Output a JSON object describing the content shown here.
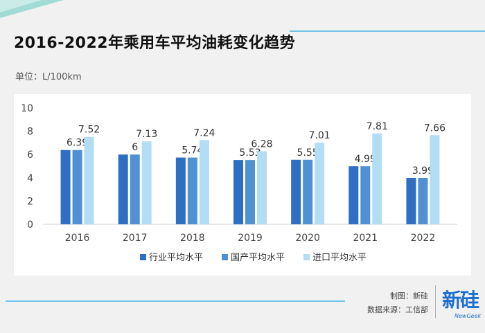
{
  "header": {
    "title": "2016-2022年乘用车平均油耗变化趋势",
    "unit": "单位：L/100km"
  },
  "footer": {
    "credit_author": "制图：新硅",
    "credit_source": "数据来源：工信部"
  },
  "logo": {
    "cn": "新硅",
    "en": "NewGeek"
  },
  "colors": {
    "accent_line": "#6fc6e8",
    "series_industry": "#2f6fc3",
    "series_domestic": "#4f91d3",
    "series_import": "#b3dcf5"
  },
  "chart_data": {
    "type": "bar",
    "title": "2016-2022年乘用车平均油耗变化趋势",
    "ylabel": "L/100km",
    "xlabel": "",
    "ylim": [
      0,
      10
    ],
    "yticks": [
      0,
      2,
      4,
      6,
      8,
      10
    ],
    "grid": false,
    "legend_position": "bottom",
    "categories": [
      "2016",
      "2017",
      "2018",
      "2019",
      "2020",
      "2021",
      "2022"
    ],
    "series": [
      {
        "name": "行业平均水平",
        "color": "#2f6fc3",
        "values": [
          6.39,
          6.0,
          5.74,
          5.53,
          5.55,
          4.99,
          3.99
        ],
        "labels": [
          "",
          "",
          "",
          "",
          "",
          "",
          ""
        ]
      },
      {
        "name": "国产平均水平",
        "color": "#4f91d3",
        "values": [
          6.39,
          6.0,
          5.74,
          5.53,
          5.55,
          4.99,
          3.99
        ],
        "labels": [
          "6.39",
          "6",
          "5.74",
          "5.53",
          "5.55",
          "4.99",
          "3.99"
        ]
      },
      {
        "name": "进口平均水平",
        "color": "#b3dcf5",
        "values": [
          7.52,
          7.13,
          7.24,
          6.28,
          7.01,
          7.81,
          7.66
        ],
        "labels": [
          "7.52",
          "7.13",
          "7.24",
          "6.28",
          "7.01",
          "7.81",
          "7.66"
        ]
      }
    ]
  }
}
